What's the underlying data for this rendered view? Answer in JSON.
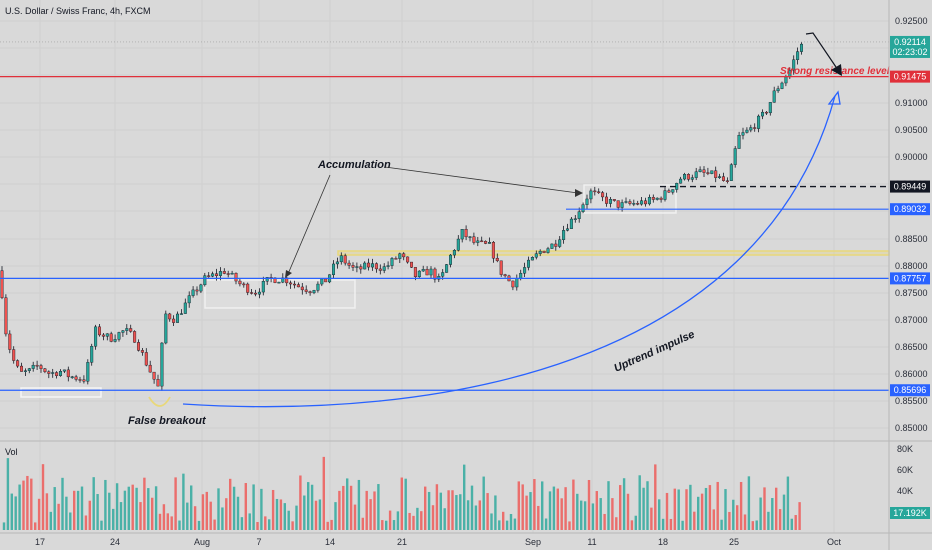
{
  "chart_data": {
    "type": "candlestick",
    "title": "U.S. Dollar / Swiss Franc, 4h, FXCM",
    "x_tick_labels": [
      "17",
      "24",
      "Aug",
      "7",
      "14",
      "21",
      "Sep",
      "11",
      "18",
      "25",
      "Oct"
    ],
    "y_tick_labels": [
      "0.92500",
      "0.92000",
      "0.91500",
      "0.91000",
      "0.90500",
      "0.90000",
      "0.89500",
      "0.89000",
      "0.88500",
      "0.88000",
      "0.87500",
      "0.87000",
      "0.86500",
      "0.86000",
      "0.85500",
      "0.85000"
    ],
    "ylim": [
      0.8485,
      0.9266
    ],
    "price_path": [
      [
        0,
        0.879
      ],
      [
        5,
        0.8685
      ],
      [
        12,
        0.863
      ],
      [
        20,
        0.86
      ],
      [
        30,
        0.8605
      ],
      [
        38,
        0.8615
      ],
      [
        50,
        0.86
      ],
      [
        60,
        0.8605
      ],
      [
        70,
        0.8595
      ],
      [
        85,
        0.859
      ],
      [
        95,
        0.868
      ],
      [
        110,
        0.8665
      ],
      [
        125,
        0.868
      ],
      [
        135,
        0.8665
      ],
      [
        145,
        0.8625
      ],
      [
        158,
        0.8575
      ],
      [
        165,
        0.871
      ],
      [
        175,
        0.87
      ],
      [
        190,
        0.874
      ],
      [
        205,
        0.8775
      ],
      [
        225,
        0.879
      ],
      [
        240,
        0.8765
      ],
      [
        255,
        0.875
      ],
      [
        270,
        0.8775
      ],
      [
        285,
        0.8775
      ],
      [
        300,
        0.876
      ],
      [
        310,
        0.8755
      ],
      [
        325,
        0.877
      ],
      [
        340,
        0.8815
      ],
      [
        355,
        0.879
      ],
      [
        370,
        0.88
      ],
      [
        385,
        0.8795
      ],
      [
        400,
        0.882
      ],
      [
        415,
        0.878
      ],
      [
        430,
        0.879
      ],
      [
        440,
        0.877
      ],
      [
        450,
        0.8815
      ],
      [
        462,
        0.886
      ],
      [
        475,
        0.884
      ],
      [
        490,
        0.8835
      ],
      [
        500,
        0.879
      ],
      [
        512,
        0.8765
      ],
      [
        525,
        0.8795
      ],
      [
        540,
        0.8825
      ],
      [
        555,
        0.884
      ],
      [
        565,
        0.887
      ],
      [
        575,
        0.889
      ],
      [
        590,
        0.8935
      ],
      [
        605,
        0.892
      ],
      [
        620,
        0.891
      ],
      [
        640,
        0.8915
      ],
      [
        655,
        0.892
      ],
      [
        668,
        0.8935
      ],
      [
        680,
        0.896
      ],
      [
        700,
        0.897
      ],
      [
        715,
        0.8965
      ],
      [
        728,
        0.895
      ],
      [
        738,
        0.9035
      ],
      [
        750,
        0.905
      ],
      [
        765,
        0.908
      ],
      [
        775,
        0.912
      ],
      [
        790,
        0.916
      ],
      [
        800,
        0.9205
      ]
    ],
    "volume_labels": [
      "Vol",
      "80K",
      "60K",
      "40K"
    ],
    "volume_ylim": [
      0,
      90000
    ],
    "current_volume": {
      "value": 17192,
      "label": "17.192K"
    },
    "horizontal_levels": [
      {
        "price": 0.91475,
        "color": "#e0303a",
        "label": "0.91475"
      },
      {
        "price": 0.89032,
        "color": "#2962ff",
        "label": "0.89032"
      },
      {
        "price": 0.87757,
        "color": "#2962ff",
        "label": "0.87757"
      },
      {
        "price": 0.85696,
        "color": "#2962ff",
        "label": "0.85696"
      }
    ],
    "dashed_level": {
      "price": 0.89449,
      "label": "0.89449"
    },
    "current_price": {
      "price": 0.92114,
      "label": "0.92114",
      "timer": "02:23:02"
    },
    "annotations": {
      "accumulation": "Accumulation",
      "false_breakout": "False breakout",
      "strong_resistance": "Strong resistance level",
      "uptrend": "Uptrend impulse"
    },
    "colors": {
      "up": "#26a69a",
      "down": "#ef5350",
      "level_blue": "#2962ff",
      "level_red": "#e0303a",
      "yellow_zone": "#e8d87a"
    }
  }
}
